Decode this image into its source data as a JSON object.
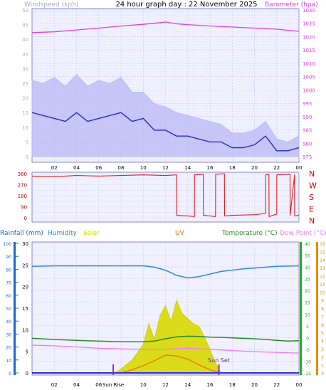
{
  "title": "24 hour graph day : 22 November 2025",
  "colors": {
    "wind_avg": "#2a2acc",
    "wind_gust": "#b8b8f4",
    "barometer": "#e040e0",
    "direction": "#e02020",
    "humidity": "#2a8ae0",
    "temperature": "#2a8a2a",
    "dew_point": "#f080f0",
    "solar": "#d8d800",
    "uv": "#f07010",
    "rain": "#3030cc",
    "sun_marker": "#8833bb",
    "sun_marker_label": "#663399",
    "plot_bg": "#f0f0fe",
    "grid": "#c8c8ee",
    "axis_label_grey": "#aaaacc",
    "axis_rain": "#1a66cc",
    "axis_temp": "#22aa22",
    "axis_uv": "#ee8800",
    "dir_label": "#cc0000"
  },
  "chart_data": [
    {
      "type": "line",
      "title": "24 hour graph day : 22 November 2025",
      "x_ticks": [
        "02",
        "04",
        "06",
        "08",
        "10",
        "12",
        "14",
        "16",
        "18",
        "20",
        "22",
        "00"
      ],
      "y_left": {
        "label": "Windspeed (kph)",
        "ticks": [
          0,
          5,
          10,
          15,
          20,
          25,
          30,
          35,
          40,
          45,
          50
        ],
        "range": [
          0,
          50
        ]
      },
      "y_right": {
        "label": "Barometer (hpa)",
        "ticks": [
          975,
          980,
          985,
          990,
          995,
          1000,
          1005,
          1010,
          1015,
          1020,
          1025,
          1030
        ],
        "range": [
          975,
          1030
        ]
      },
      "series": [
        {
          "name": "Barometer (hpa)",
          "axis": "right",
          "x": [
            0,
            2,
            4,
            6,
            8,
            10,
            11,
            12,
            13,
            14,
            16,
            18,
            20,
            22,
            24
          ],
          "y": [
            1021.5,
            1021.8,
            1022.5,
            1023.2,
            1024,
            1024.6,
            1025,
            1025.5,
            1024.8,
            1024.5,
            1024,
            1023.6,
            1023.2,
            1022.8,
            1022
          ]
        },
        {
          "name": "Windspeed (kph)",
          "axis": "left",
          "x": [
            0,
            1,
            2,
            3,
            4,
            5,
            6,
            7,
            8,
            9,
            10,
            11,
            12,
            13,
            14,
            15,
            16,
            17,
            18,
            19,
            20,
            21,
            22,
            23,
            24
          ],
          "y": [
            15,
            14,
            13,
            12,
            15,
            12,
            13,
            14,
            15,
            12,
            13,
            9,
            9,
            7,
            7,
            6,
            5,
            5,
            3,
            3,
            4,
            7,
            2,
            2,
            3
          ]
        },
        {
          "name": "Gust (kph)",
          "axis": "left",
          "x": [
            0,
            1,
            2,
            3,
            4,
            5,
            6,
            7,
            8,
            9,
            10,
            11,
            12,
            13,
            14,
            15,
            16,
            17,
            18,
            19,
            20,
            21,
            22,
            23,
            24
          ],
          "y": [
            26,
            25,
            27,
            24,
            28,
            24,
            26,
            25,
            27,
            22,
            22,
            18,
            17,
            15,
            14,
            13,
            12,
            11,
            8,
            8,
            9,
            12,
            6,
            5,
            7
          ]
        }
      ]
    },
    {
      "type": "line",
      "x_ticks": [
        "02",
        "04",
        "06",
        "08",
        "10",
        "12",
        "14",
        "16",
        "18",
        "20",
        "22",
        "00"
      ],
      "y_left": {
        "ticks": [
          0,
          45,
          90,
          135,
          180,
          225,
          270,
          315,
          360
        ],
        "tick_labels_shown": [
          0,
          90,
          180,
          270,
          360
        ],
        "range": [
          0,
          360
        ]
      },
      "right_labels": [
        "N",
        "W",
        "S",
        "E",
        "N"
      ],
      "series": [
        {
          "name": "Wind direction",
          "x": [
            0,
            2,
            4,
            6,
            8,
            10,
            12,
            13,
            13.01,
            14,
            14.6,
            14.61,
            15.4,
            15.41,
            16,
            16.5,
            16.51,
            17.3,
            17.31,
            18,
            20,
            21,
            21.01,
            21.3,
            21.31,
            22,
            22.01,
            23.2,
            23.21,
            23.6,
            23.61,
            24
          ],
          "y": [
            340,
            335,
            345,
            340,
            345,
            350,
            345,
            350,
            20,
            15,
            10,
            350,
            355,
            20,
            15,
            10,
            355,
            360,
            15,
            20,
            25,
            35,
            350,
            355,
            10,
            30,
            350,
            355,
            20,
            350,
            15,
            20
          ]
        }
      ]
    },
    {
      "type": "line",
      "legend": [
        "Rainfall (mm)",
        "Humidity",
        "Solar",
        "UV",
        "Temperature (°C)",
        "Dew Point (°C)"
      ],
      "x_ticks": [
        "02",
        "04",
        "06",
        "08",
        "10",
        "12",
        "14",
        "16",
        "18",
        "20",
        "22",
        "00"
      ],
      "annotations": [
        {
          "label": "Sun Rise",
          "x": 7.3
        },
        {
          "label": "Sun Set",
          "x": 16.8
        }
      ],
      "y_axes": {
        "rain": {
          "range": [
            0,
            100
          ],
          "ticks": [
            0,
            10,
            20,
            30,
            40,
            50,
            60,
            70,
            80,
            90,
            100
          ]
        },
        "humidity": {
          "range": [
            0,
            30
          ],
          "ticks": [
            0,
            5,
            10,
            15,
            20,
            25,
            30
          ]
        },
        "temperature": {
          "range": [
            -15,
            40
          ],
          "ticks": [
            -15,
            -10,
            -5,
            0,
            5,
            10,
            15,
            20,
            25,
            30,
            35,
            40
          ]
        },
        "uv": {
          "range": [
            0,
            16
          ],
          "ticks": [
            0,
            1,
            2,
            3,
            4,
            5,
            6,
            7,
            8,
            9,
            10,
            11,
            12,
            13,
            14,
            15,
            16
          ]
        }
      },
      "series": [
        {
          "name": "Humidity",
          "x": [
            0,
            2,
            4,
            6,
            8,
            10,
            11,
            12,
            13,
            14,
            15,
            16,
            17,
            18,
            19,
            20,
            21,
            22,
            24
          ],
          "y": [
            24.7,
            24.8,
            24.8,
            24.8,
            24.8,
            24.8,
            24.5,
            23.8,
            22.6,
            22,
            22.3,
            22.9,
            23.5,
            23.8,
            24.1,
            24.3,
            24.5,
            24.7,
            24.8
          ]
        },
        {
          "name": "Temperature (°C)",
          "x": [
            0,
            2,
            4,
            6,
            8,
            10,
            11,
            12,
            13,
            14,
            15,
            16,
            17,
            18,
            19,
            20,
            21,
            22,
            23,
            24
          ],
          "y": [
            -0.3,
            -0.8,
            -1.2,
            -1.5,
            -1.8,
            -1.8,
            -1.5,
            -0.5,
            0.3,
            0.6,
            0.5,
            0.2,
            0.1,
            -0.1,
            -0.3,
            -0.5,
            -0.8,
            -1.2,
            -1.5,
            -1.3
          ]
        },
        {
          "name": "Dew Point (°C)",
          "x": [
            0,
            2,
            4,
            6,
            8,
            10,
            12,
            14,
            16,
            18,
            20,
            22,
            24
          ],
          "y": [
            -3.2,
            -3.5,
            -4,
            -4.5,
            -4.8,
            -5,
            -5,
            -4.5,
            -5,
            -5.5,
            -6,
            -6.3,
            -6.6
          ]
        },
        {
          "name": "Rainfall (mm)",
          "x": [
            0,
            24
          ],
          "y": [
            0,
            0
          ]
        },
        {
          "name": "Solar (% of plot)",
          "x": [
            0,
            7.4,
            8,
            9,
            10,
            10.5,
            11,
            11.5,
            12,
            12.5,
            13,
            13.5,
            14,
            14.5,
            15,
            15.5,
            16,
            16.5,
            17,
            24
          ],
          "y": [
            0,
            0,
            3,
            10,
            22,
            38,
            26,
            44,
            52,
            40,
            56,
            46,
            42,
            38,
            36,
            28,
            18,
            8,
            0,
            0
          ]
        },
        {
          "name": "UV",
          "x": [
            0,
            8,
            9,
            10,
            11,
            12,
            13,
            14,
            15,
            16,
            17,
            24
          ],
          "y": [
            0,
            0,
            0.4,
            0.9,
            1.5,
            2.2,
            2.1,
            1.7,
            1.0,
            0.4,
            0,
            0
          ]
        }
      ]
    }
  ]
}
